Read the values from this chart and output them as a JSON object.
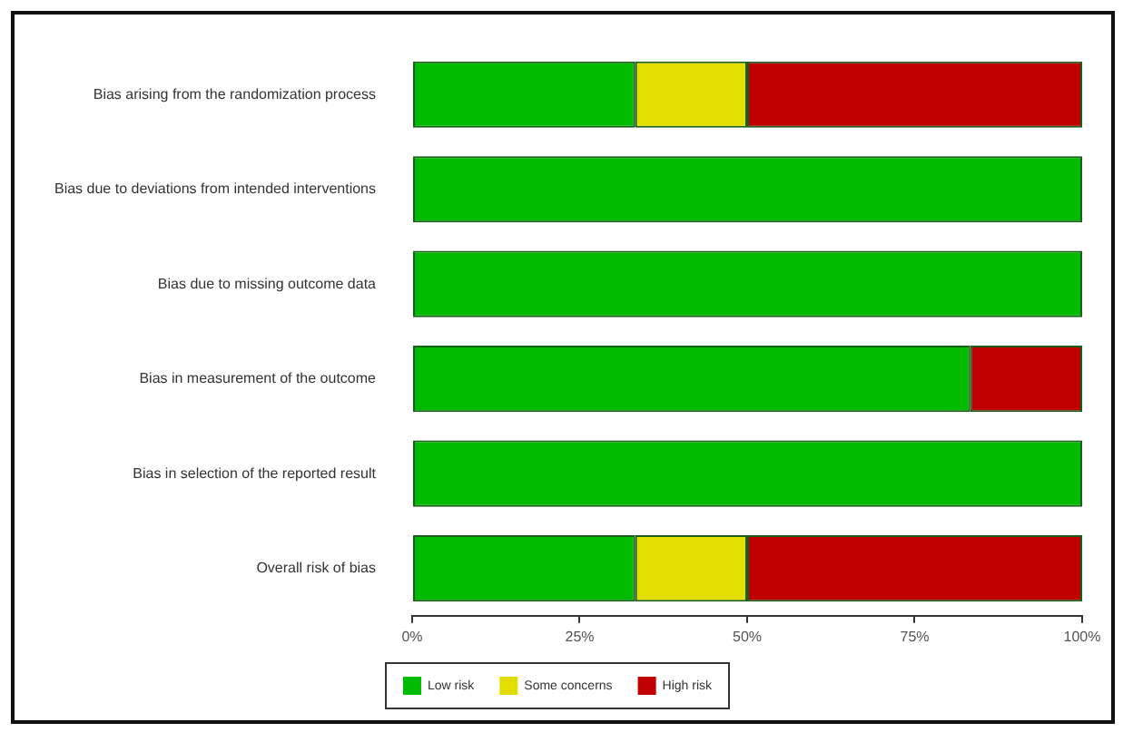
{
  "chart_data": {
    "type": "bar",
    "orientation": "horizontal",
    "stacked": true,
    "categories": [
      "Bias arising from the randomization process",
      "Bias due to deviations from intended interventions",
      "Bias due to missing outcome data",
      "Bias in measurement of the outcome",
      "Bias in selection of the reported result",
      "Overall risk of bias"
    ],
    "series": [
      {
        "name": "Low risk",
        "color": "#00bb00",
        "values": [
          33.3,
          100,
          100,
          83.3,
          100,
          33.3
        ]
      },
      {
        "name": "Some concerns",
        "color": "#e2df00",
        "values": [
          16.7,
          0,
          0,
          0,
          0,
          16.7
        ]
      },
      {
        "name": "High risk",
        "color": "#c00000",
        "values": [
          50,
          0,
          0,
          16.7,
          0,
          50
        ]
      }
    ],
    "xlim": [
      0,
      100
    ],
    "xticks": [
      {
        "value": 0,
        "label": "0%"
      },
      {
        "value": 25,
        "label": "25%"
      },
      {
        "value": 50,
        "label": "50%"
      },
      {
        "value": 75,
        "label": "75%"
      },
      {
        "value": 100,
        "label": "100%"
      }
    ],
    "legend": "bottom"
  }
}
